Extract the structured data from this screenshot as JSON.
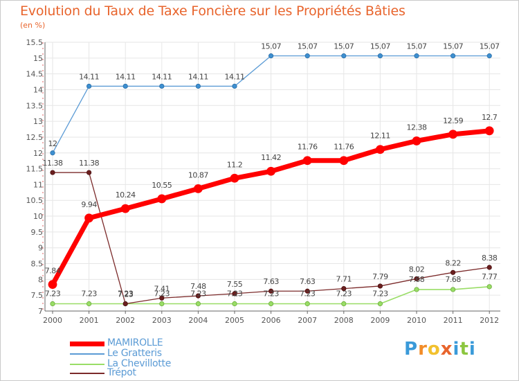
{
  "chart_data": {
    "type": "line",
    "title": "Evolution du Taux de Taxe Foncière sur les Propriétés Bâties",
    "unit_label": "(en %)",
    "xlabel": "",
    "ylabel": "",
    "ylim": [
      7,
      15.5
    ],
    "yticks": [
      "7",
      "7.5",
      "8",
      "8.5",
      "9",
      "9.5",
      "10",
      "10.5",
      "11",
      "11.5",
      "12",
      "12.5",
      "13",
      "13.5",
      "14",
      "14.5",
      "15",
      "15.5"
    ],
    "categories": [
      "2000",
      "2001",
      "2002",
      "2003",
      "2004",
      "2005",
      "2006",
      "2007",
      "2008",
      "2009",
      "2010",
      "2011",
      "2012"
    ],
    "series": [
      {
        "name": "MAMIROLLE",
        "color": "#ff0000",
        "values": [
          7.84,
          9.94,
          10.24,
          10.55,
          10.87,
          11.2,
          11.42,
          11.76,
          11.76,
          12.11,
          12.38,
          12.59,
          12.7
        ],
        "labels": [
          "7.84",
          "9.94",
          "10.24",
          "10.55",
          "10.87",
          "11.2",
          "11.42",
          "11.76",
          "11.76",
          "12.11",
          "12.38",
          "12.59",
          "12.7"
        ]
      },
      {
        "name": "Le Gratteris",
        "color": "#5b9bd5",
        "values": [
          12,
          14.11,
          14.11,
          14.11,
          14.11,
          14.11,
          15.07,
          15.07,
          15.07,
          15.07,
          15.07,
          15.07,
          15.07
        ],
        "labels": [
          "12",
          "14.11",
          "14.11",
          "14.11",
          "14.11",
          "14.11",
          "15.07",
          "15.07",
          "15.07",
          "15.07",
          "15.07",
          "15.07",
          "15.07"
        ]
      },
      {
        "name": "La Chevillotte",
        "color": "#99dd66",
        "values": [
          7.23,
          7.23,
          7.23,
          7.23,
          7.23,
          7.23,
          7.23,
          7.23,
          7.23,
          7.23,
          7.68,
          7.68,
          7.77
        ],
        "labels": [
          "7.23",
          "7.23",
          "7.23",
          "7.23",
          "7.23",
          "7.23",
          "7.23",
          "7.23",
          "7.23",
          "7.23",
          "7.68",
          "7.68",
          "7.77"
        ]
      },
      {
        "name": "Trépot",
        "color": "#7b2a2a",
        "values": [
          11.38,
          11.38,
          7.23,
          7.41,
          7.48,
          7.55,
          7.63,
          7.63,
          7.71,
          7.79,
          8.02,
          8.22,
          8.38
        ],
        "labels": [
          "11.38",
          "11.38",
          "7.23",
          "7.41",
          "7.48",
          "7.55",
          "7.63",
          "7.63",
          "7.71",
          "7.79",
          "8.02",
          "8.22",
          "8.38"
        ]
      }
    ],
    "legend_position": "bottom-left"
  },
  "logo": {
    "letters": [
      "P",
      "r",
      "o",
      "x",
      "i",
      "t",
      "i"
    ],
    "colors": [
      "#3a9ad9",
      "#f28c28",
      "#f2c12e",
      "#e8642c",
      "#3a9ad9",
      "#8cc63f",
      "#3a9ad9"
    ]
  },
  "colors": {
    "title": "#e8642c",
    "axis": "#666666",
    "grid": "#e6e6e6"
  }
}
